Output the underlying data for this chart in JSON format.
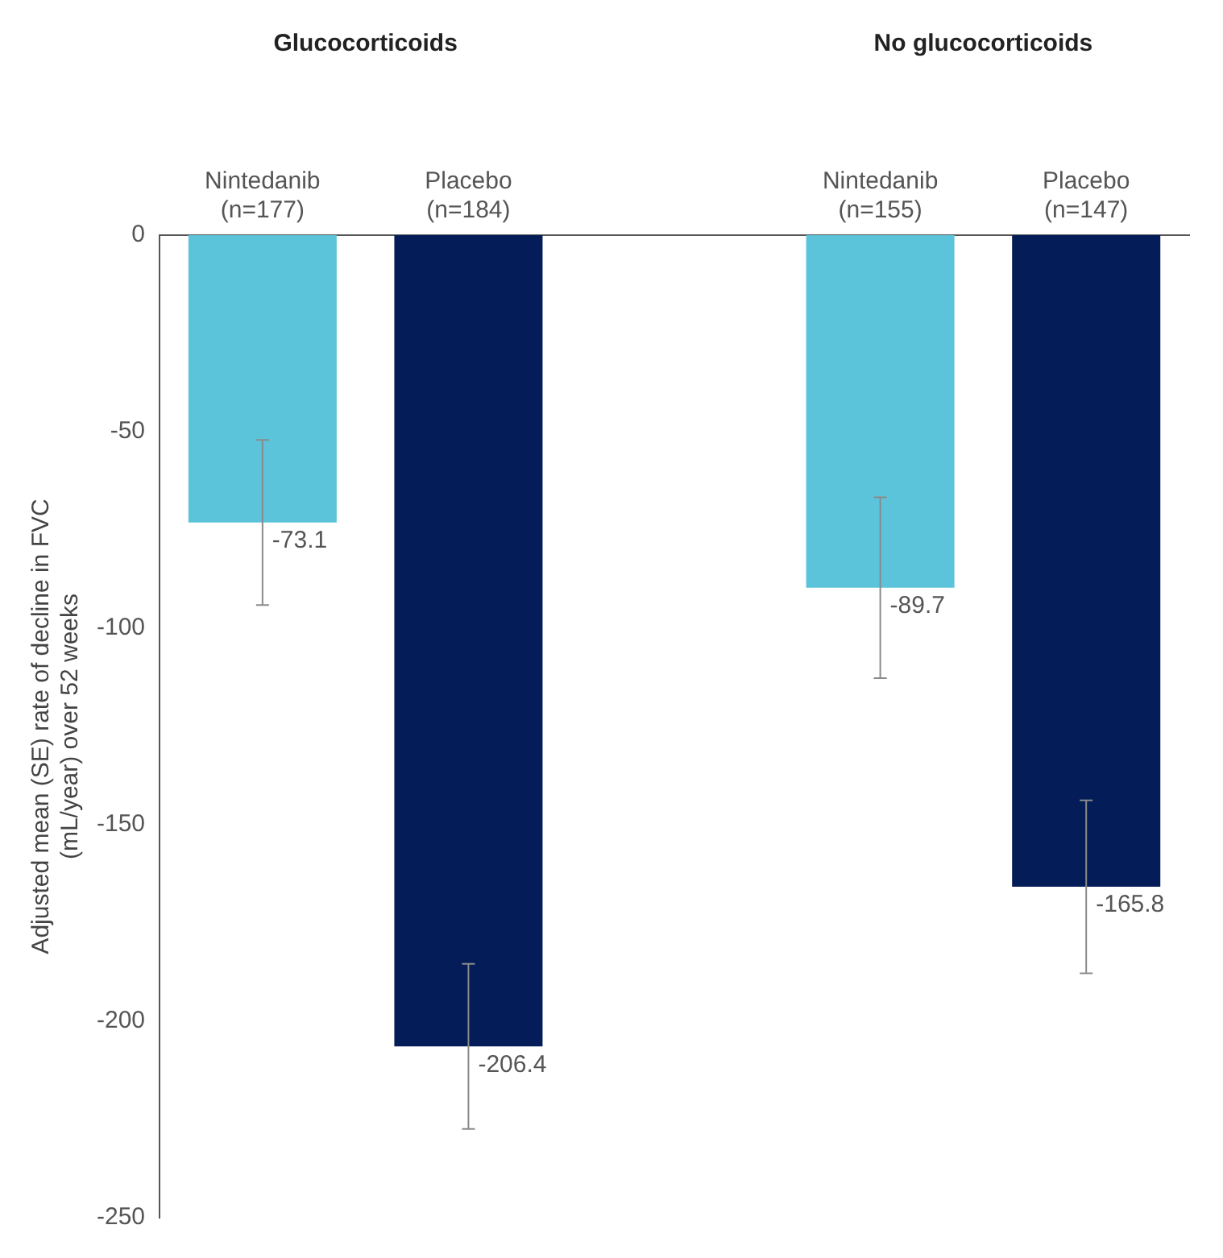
{
  "chart_data": {
    "type": "bar",
    "ylabel": "Adjusted mean (SE) rate of decline in FVC\n(mL/year) over 52 weeks",
    "annotations": [
      "Glucocorticoids",
      "No glucocorticoids"
    ],
    "categories": [
      "Nintedanib\n(n=177)",
      "Placebo\n(n=184)",
      null,
      "Nintedanib\n(n=155)",
      "Placebo\n(n=147)"
    ],
    "values": [
      -73.1,
      -206.4,
      null,
      -89.7,
      -165.8
    ],
    "colors": [
      "#5bc4da",
      "#041c58",
      null,
      "#5bc4da",
      "#041c58"
    ],
    "errors": [
      21,
      21,
      null,
      23,
      22
    ],
    "data_labels": true,
    "ylim": [
      -250,
      0
    ],
    "yticks": [
      -250,
      -200,
      -150,
      -100,
      -50,
      0
    ],
    "grid": false,
    "legend": false
  }
}
